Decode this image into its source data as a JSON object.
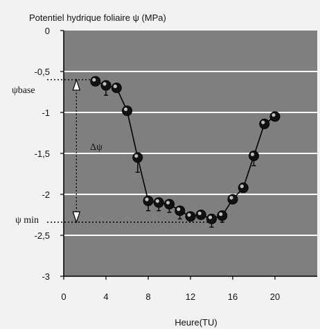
{
  "chart_data": {
    "type": "line",
    "title": "Potentiel hydrique foliaire  ψ  (MPa)",
    "xlabel": "Heure(TU)",
    "ylabel": "",
    "xlim": [
      0,
      24
    ],
    "ylim": [
      -3,
      0
    ],
    "x_ticks": [
      {
        "value": 0,
        "label": "0"
      },
      {
        "value": 4,
        "label": "4"
      },
      {
        "value": 8,
        "label": "8"
      },
      {
        "value": 12,
        "label": "12"
      },
      {
        "value": 16,
        "label": "16"
      },
      {
        "value": 20,
        "label": "20"
      }
    ],
    "y_ticks": [
      {
        "value": 0,
        "label": "0"
      },
      {
        "value": -0.5,
        "label": "-0,5"
      },
      {
        "value": -1,
        "label": "-1"
      },
      {
        "value": -1.5,
        "label": "-1,5"
      },
      {
        "value": -2,
        "label": "-2"
      },
      {
        "value": -2.5,
        "label": "-2,5"
      },
      {
        "value": -3,
        "label": "-3"
      }
    ],
    "grid": "horizontal white lines at every 0.5 MPa",
    "plot_background": "#7f7f7f",
    "series": [
      {
        "x": [
          3,
          4,
          5,
          6,
          7,
          8,
          9,
          10,
          11,
          12,
          13,
          14,
          15,
          16,
          17,
          18,
          19,
          20
        ],
        "y": [
          -0.62,
          -0.67,
          -0.7,
          -0.98,
          -1.55,
          -2.08,
          -2.1,
          -2.12,
          -2.2,
          -2.27,
          -2.25,
          -2.3,
          -2.26,
          -2.06,
          -1.92,
          -1.53,
          -1.14,
          -1.05
        ],
        "error": [
          0,
          0.12,
          0.05,
          0,
          0.18,
          0.12,
          0.1,
          0.1,
          0.1,
          0,
          0,
          0.1,
          0.08,
          0,
          0,
          0.12,
          0,
          0
        ]
      }
    ],
    "annotations": {
      "psi_base_label": "ψbase",
      "psi_base_value": -0.6,
      "psi_min_label": "ψ min",
      "psi_min_value": -2.34,
      "delta_label": "Δψ",
      "bracket_x": 1.2
    }
  }
}
